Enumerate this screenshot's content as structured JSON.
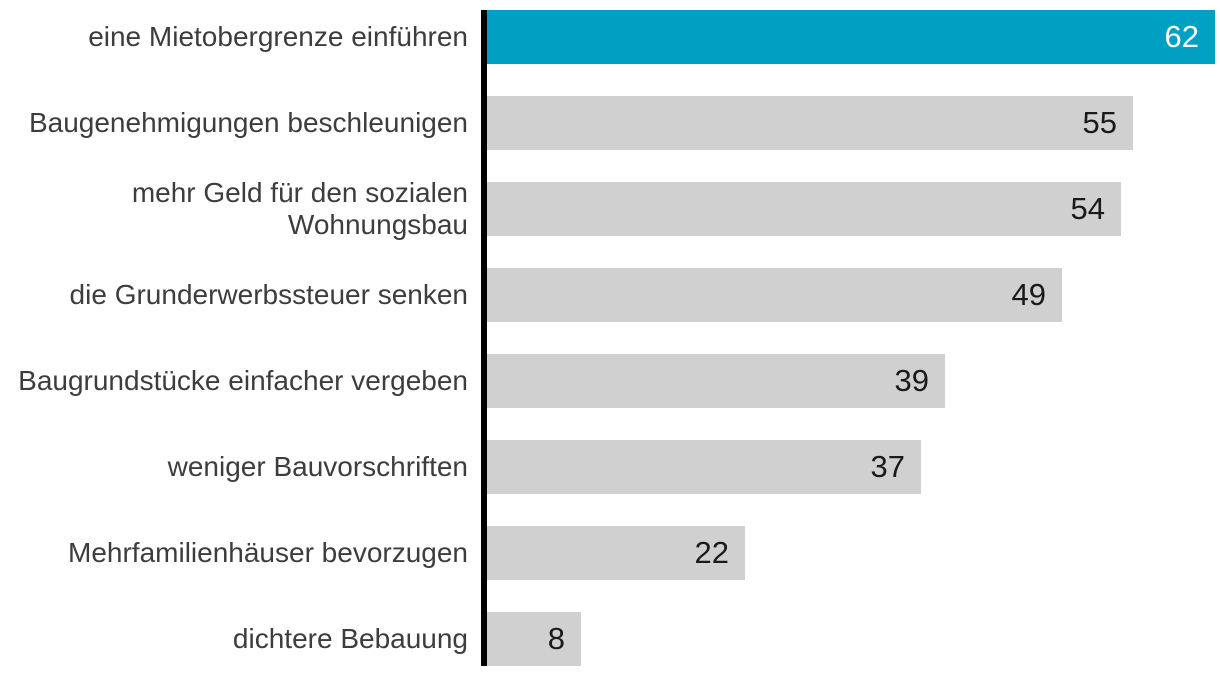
{
  "chart_data": {
    "type": "bar",
    "orientation": "horizontal",
    "categories": [
      "eine Mietobergrenze einführen",
      "Baugenehmigungen beschleunigen",
      "mehr Geld für den sozialen\nWohnungsbau",
      "die Grunderwerbssteuer senken",
      "Baugrundstücke einfacher vergeben",
      "weniger Bauvorschriften",
      "Mehrfamilienhäuser bevorzugen",
      "dichtere Bebauung"
    ],
    "values": [
      62,
      55,
      54,
      49,
      39,
      37,
      22,
      8
    ],
    "xlim": [
      0,
      62
    ],
    "highlight_index": 0,
    "grid": false,
    "legend": false,
    "value_labels_inside_bars": true,
    "colors": {
      "highlight_bar": "#00a0c2",
      "default_bar": "#d0d0d0",
      "axis_line": "#000000",
      "category_text": "#3d3d3d",
      "value_text": "#1a1a1a",
      "value_text_on_highlight": "#ffffff",
      "background": "#ffffff"
    }
  }
}
